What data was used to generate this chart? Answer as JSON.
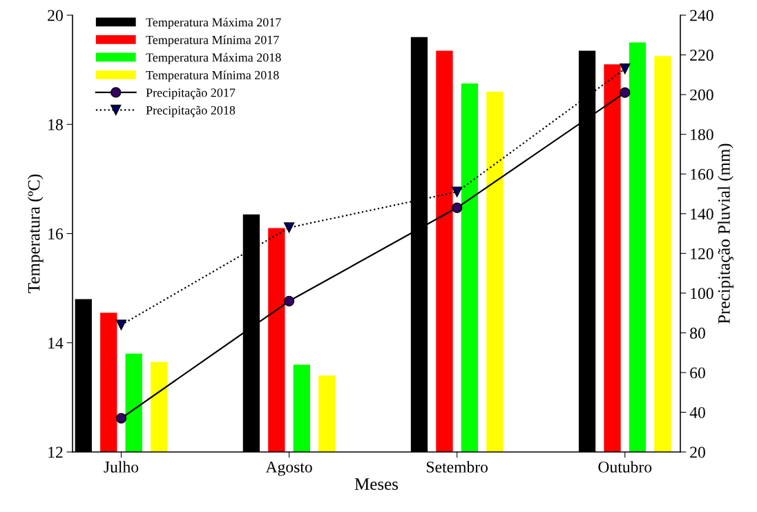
{
  "chart_data": {
    "type": "bar",
    "xlabel": "Meses",
    "ylabel": "Temperatura (ºC)",
    "y2label": "Precipitação Pluvial (mm)",
    "categories": [
      "Julho",
      "Agosto",
      "Setembro",
      "Outubro"
    ],
    "series": [
      {
        "name": "Temperatura Máxima 2017",
        "color": "#000000",
        "values": [
          14.8,
          16.35,
          19.6,
          19.35
        ]
      },
      {
        "name": "Temperatura Mínima 2017",
        "color": "#ff0000",
        "values": [
          14.55,
          16.1,
          19.35,
          19.1
        ]
      },
      {
        "name": "Temperatura Máxima 2018",
        "color": "#00ff00",
        "values": [
          13.8,
          13.6,
          18.75,
          19.5
        ]
      },
      {
        "name": "Temperatura Mínima 2018",
        "color": "#ffff00",
        "values": [
          13.65,
          13.4,
          18.6,
          19.25
        ]
      },
      {
        "name": "Precipitação 2017",
        "type": "line",
        "axis": "y2",
        "color": "#330066",
        "marker": "circle",
        "line_style": "solid",
        "values": [
          37,
          96,
          143,
          201
        ]
      },
      {
        "name": "Precipitação 2018",
        "type": "line",
        "axis": "y2",
        "color": "#000066",
        "marker": "triangle",
        "line_style": "dotted",
        "values": [
          84,
          133,
          151,
          213
        ]
      }
    ],
    "ylim": [
      12,
      20
    ],
    "yticks": [
      12,
      14,
      16,
      18,
      20
    ],
    "y2lim": [
      20,
      240
    ],
    "y2ticks": [
      20,
      40,
      60,
      80,
      100,
      120,
      140,
      160,
      180,
      200,
      220,
      240
    ],
    "grid": false,
    "legend": "top left"
  }
}
